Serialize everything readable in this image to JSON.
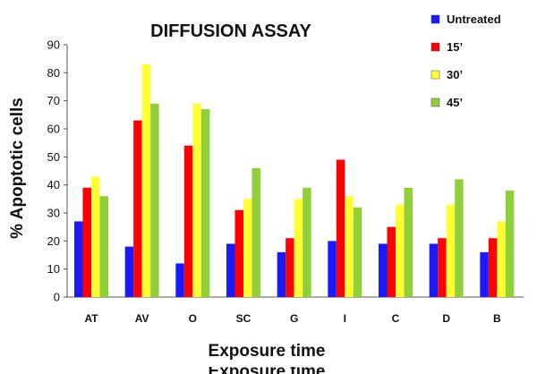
{
  "chart_data": {
    "type": "bar",
    "title": "DIFFUSION ASSAY",
    "xlabel": "Exposure time",
    "ylabel": "% Apoptotic cells",
    "ylim": [
      0,
      90
    ],
    "yticks": [
      0,
      10,
      20,
      30,
      40,
      50,
      60,
      70,
      80,
      90
    ],
    "grid": false,
    "legend_position": "top-right",
    "categories": [
      "AT",
      "AV",
      "O",
      "SC",
      "G",
      "I",
      "C",
      "D",
      "B"
    ],
    "series": [
      {
        "name": "Untreated",
        "color": "#1a1aff",
        "values": [
          27,
          18,
          12,
          19,
          16,
          20,
          19,
          19,
          16
        ]
      },
      {
        "name": "15’",
        "color": "#ff0000",
        "values": [
          39,
          63,
          54,
          31,
          21,
          49,
          25,
          21,
          21
        ]
      },
      {
        "name": "30’",
        "color": "#ffff33",
        "values": [
          43,
          83,
          69,
          35,
          35,
          36,
          33,
          33,
          27
        ]
      },
      {
        "name": "45’",
        "color": "#8fd03a",
        "values": [
          36,
          69,
          67,
          46,
          39,
          32,
          39,
          42,
          38
        ]
      }
    ]
  }
}
